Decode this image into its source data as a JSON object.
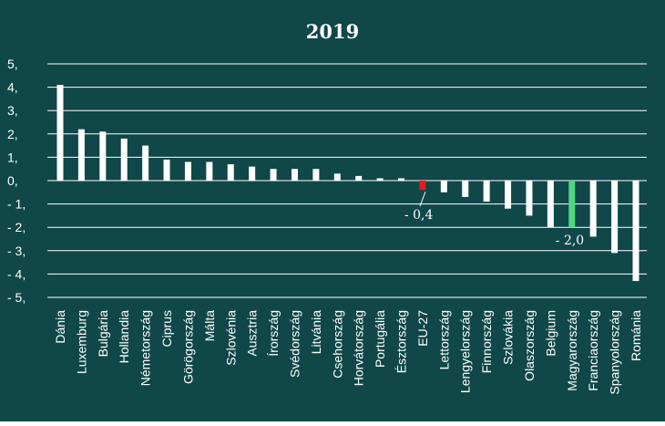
{
  "chart_data": {
    "type": "bar",
    "title": "2019",
    "xlabel": "",
    "ylabel": "",
    "ylim": [
      -5,
      5
    ],
    "y_ticks": [
      5,
      4,
      3,
      2,
      1,
      0,
      -1,
      -2,
      -3,
      -4,
      -5
    ],
    "y_tick_labels": [
      "5,",
      "4,",
      "3,",
      "2,",
      "1,",
      "0,",
      "- 1,",
      "- 2,",
      "- 3,",
      "- 4,",
      "- 5,"
    ],
    "grid": true,
    "categories": [
      "Dánia",
      "Luxemburg",
      "Bulgária",
      "Hollandia",
      "Németország",
      "Ciprus",
      "Görögország",
      "Málta",
      "Szlovénia",
      "Ausztria",
      "Írország",
      "Svédország",
      "Litvánia",
      "Csehország",
      "Horvátország",
      "Portugália",
      "Észtország",
      "EU-27",
      "Lettország",
      "Lengyelország",
      "Finnország",
      "Szlovákia",
      "Olaszország",
      "Belgium",
      "Magyarország",
      "Franciaország",
      "Spanyolország",
      "Románia"
    ],
    "values": [
      4.1,
      2.2,
      2.1,
      1.8,
      1.5,
      0.9,
      0.8,
      0.8,
      0.7,
      0.6,
      0.5,
      0.5,
      0.5,
      0.3,
      0.2,
      0.1,
      0.1,
      -0.4,
      -0.5,
      -0.7,
      -0.9,
      -1.2,
      -1.5,
      -2.0,
      -2.0,
      -2.4,
      -3.1,
      -4.3
    ],
    "highlights": {
      "EU-27": "#e41a1c",
      "Magyarország": "#4fd67f"
    },
    "annotations": [
      {
        "category": "EU-27",
        "text": "- 0,4"
      },
      {
        "category": "Magyarország",
        "text": "- 2,0"
      }
    ]
  },
  "colors": {
    "background": "#104749",
    "bar": "#ffffff",
    "text": "#ffffff",
    "gridline": "#ffffff"
  }
}
